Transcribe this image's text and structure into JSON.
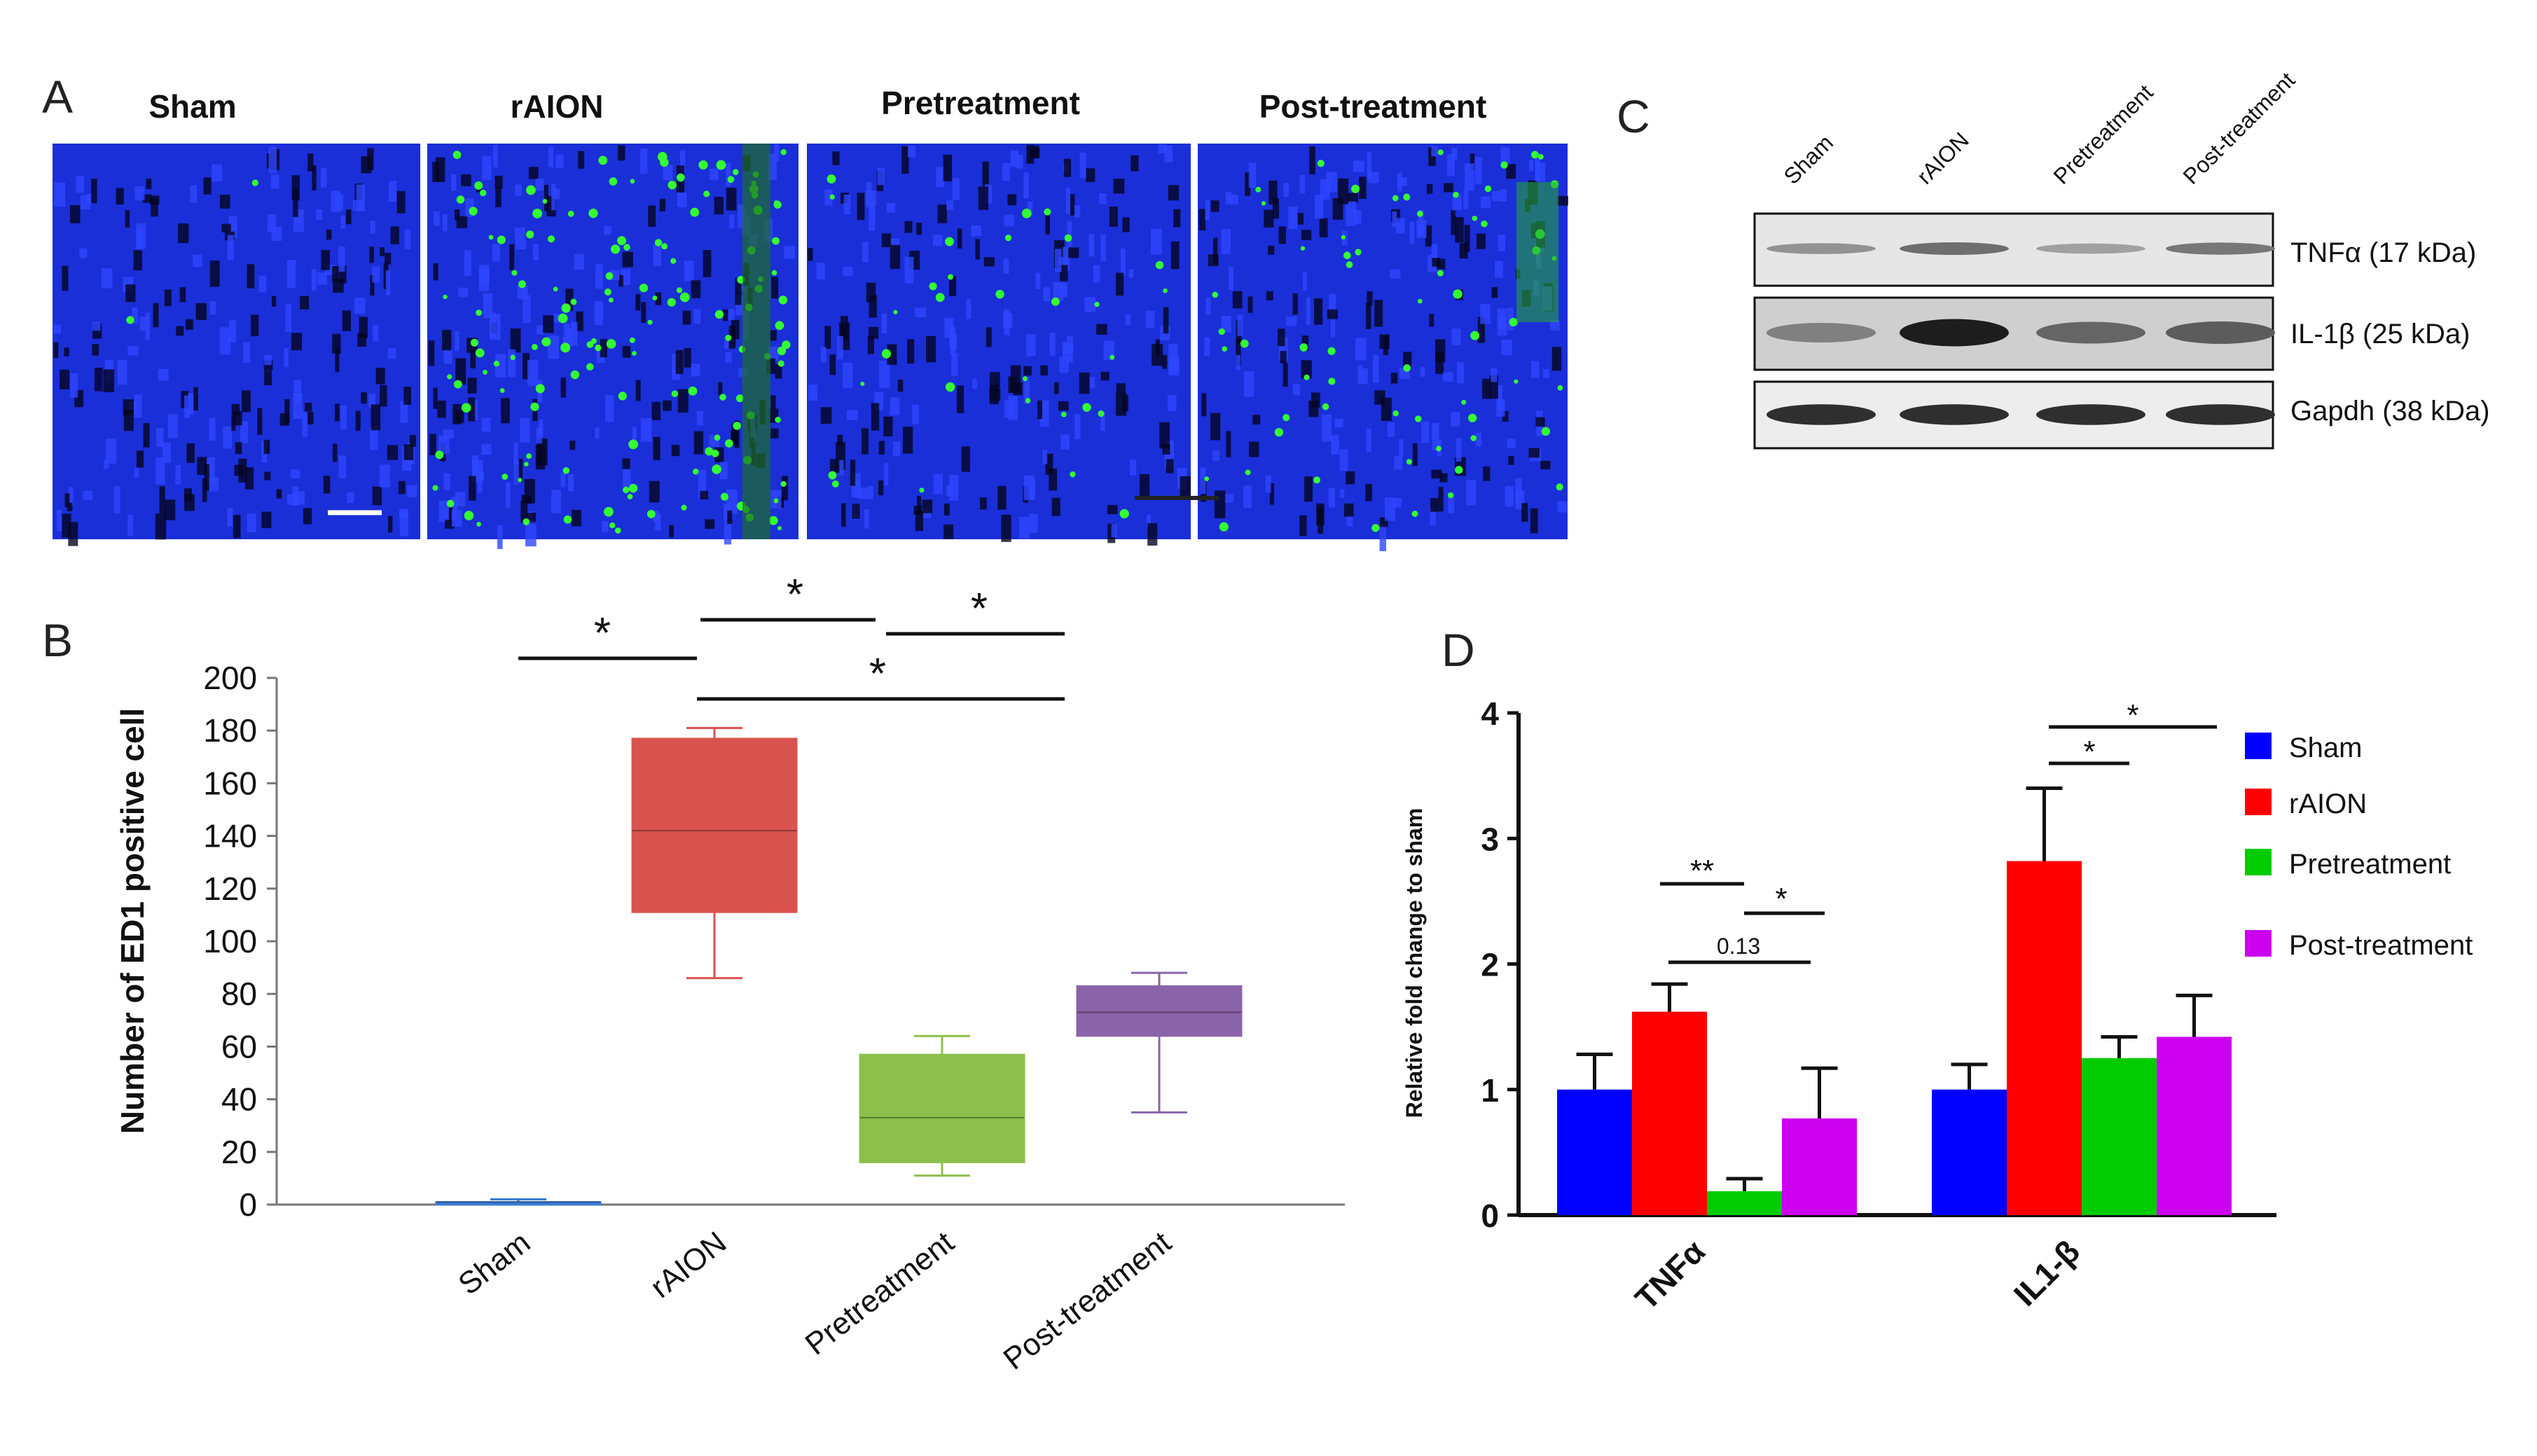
{
  "panels": {
    "A": {
      "letter": "A",
      "image_titles": [
        "Sham",
        "rAION",
        "Pretreatment",
        "Post-treatment"
      ]
    },
    "B": {
      "letter": "B"
    },
    "C": {
      "letter": "C",
      "lane_labels": [
        "Sham",
        "rAION",
        "Pretreatment",
        "Post-treatment"
      ],
      "blot_labels": [
        "TNFα (17 kDa)",
        "IL-1β (25 kDa)",
        "Gapdh (38 kDa)"
      ],
      "band_intensity": [
        [
          0.3,
          0.5,
          0.22,
          0.45
        ],
        [
          0.4,
          0.95,
          0.55,
          0.6
        ],
        [
          0.85,
          0.85,
          0.85,
          0.85
        ]
      ]
    },
    "D": {
      "letter": "D"
    }
  },
  "colors": {
    "nucleus_blue": "#1a2fd8",
    "marker_green": "#33ff33",
    "sham": "#0000ff",
    "raion": "#ff0000",
    "pretreatment": "#00cc00",
    "post_treatment": "#cc00ee",
    "box_raion": "#d9534f",
    "box_pre": "#8dbf4d",
    "box_post": "#8a64a8"
  },
  "chart_data": [
    {
      "type": "box",
      "ylabel": "Number of ED1 positive cell",
      "ylim": [
        0,
        200
      ],
      "yticks": [
        0,
        20,
        40,
        60,
        80,
        100,
        120,
        140,
        160,
        180,
        200
      ],
      "categories": [
        "Sham",
        "rAION",
        "Pretreatment",
        "Post-treatment"
      ],
      "boxes": [
        {
          "min": 0,
          "q1": 0,
          "median": 1,
          "q3": 1,
          "max": 2
        },
        {
          "min": 86,
          "q1": 111,
          "median": 142,
          "q3": 177,
          "max": 181
        },
        {
          "min": 11,
          "q1": 16,
          "median": 33,
          "q3": 57,
          "max": 64
        },
        {
          "min": 35,
          "q1": 64,
          "median": 73,
          "q3": 83,
          "max": 88
        }
      ],
      "annotations": [
        {
          "label": "*",
          "from": 0,
          "to": 1
        },
        {
          "label": "*",
          "from": 1,
          "to": 2
        },
        {
          "label": "*",
          "from": 2,
          "to": 3
        },
        {
          "label": "*",
          "from": 1,
          "to": 3
        }
      ]
    },
    {
      "type": "bar",
      "ylabel": "Relative fold change to sham",
      "ylim": [
        0,
        4
      ],
      "yticks": [
        0,
        1,
        2,
        3,
        4
      ],
      "categories": [
        "TNFα",
        "IL1-β"
      ],
      "series": [
        {
          "name": "Sham",
          "values": [
            1.0,
            1.0
          ],
          "errors": [
            0.28,
            0.2
          ]
        },
        {
          "name": "rAION",
          "values": [
            1.62,
            2.82
          ],
          "errors": [
            0.22,
            0.58
          ]
        },
        {
          "name": "Pretreatment",
          "values": [
            0.19,
            1.25
          ],
          "errors": [
            0.1,
            0.17
          ]
        },
        {
          "name": "Post-treatment",
          "values": [
            0.77,
            1.42
          ],
          "errors": [
            0.4,
            0.33
          ]
        }
      ],
      "annotations": [
        {
          "label": "**",
          "group": 0,
          "from": 0,
          "to": 1
        },
        {
          "label": "*",
          "group": 0,
          "from": 1,
          "to": 2
        },
        {
          "label": "0.13",
          "group": 0,
          "from": 0,
          "to": 2
        },
        {
          "label": "*",
          "group": 1,
          "from": 0,
          "to": 1
        },
        {
          "label": "*",
          "group": 1,
          "from": 0,
          "to": 2
        }
      ],
      "legend": "right"
    }
  ]
}
